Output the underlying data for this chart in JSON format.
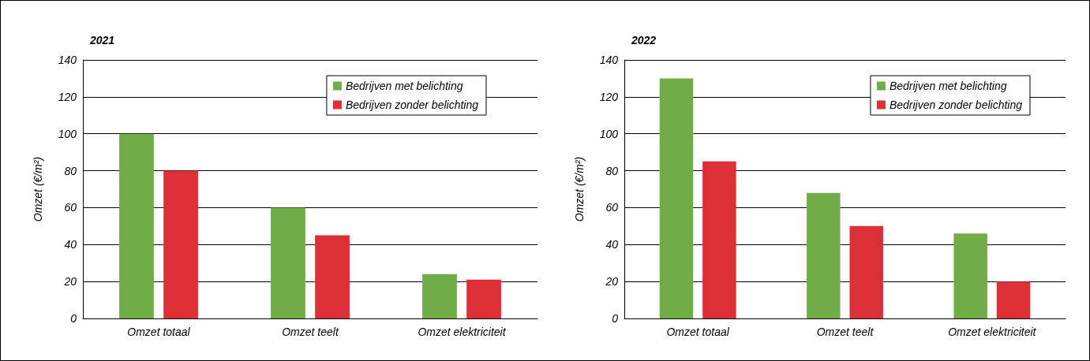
{
  "chart_data": [
    {
      "type": "bar",
      "title": "2021",
      "ylabel": "Omzet (€/m²)",
      "categories": [
        "Omzet totaal",
        "Omzet teelt",
        "Omzet elektriciteit"
      ],
      "series": [
        {
          "name": "Bedrijven met belichting",
          "color": "#70ad47",
          "values": [
            100,
            60,
            24
          ]
        },
        {
          "name": "Bedrijven zonder belichting",
          "color": "#dc3036",
          "values": [
            80,
            45,
            21
          ]
        }
      ],
      "ylim": [
        0,
        140
      ],
      "yticks": [
        0,
        20,
        40,
        60,
        80,
        100,
        120,
        140
      ],
      "grid": "y",
      "legend": "top right"
    },
    {
      "type": "bar",
      "title": "2022",
      "ylabel": "Omzet (€/m²)",
      "categories": [
        "Omzet totaal",
        "Omzet teelt",
        "Omzet elektriciteit"
      ],
      "series": [
        {
          "name": "Bedrijven met belichting",
          "color": "#70ad47",
          "values": [
            130,
            68,
            46
          ]
        },
        {
          "name": "Bedrijven zonder belichting",
          "color": "#dc3036",
          "values": [
            85,
            50,
            20
          ]
        }
      ],
      "ylim": [
        0,
        140
      ],
      "yticks": [
        0,
        20,
        40,
        60,
        80,
        100,
        120,
        140
      ],
      "grid": "y",
      "legend": "top right"
    }
  ]
}
